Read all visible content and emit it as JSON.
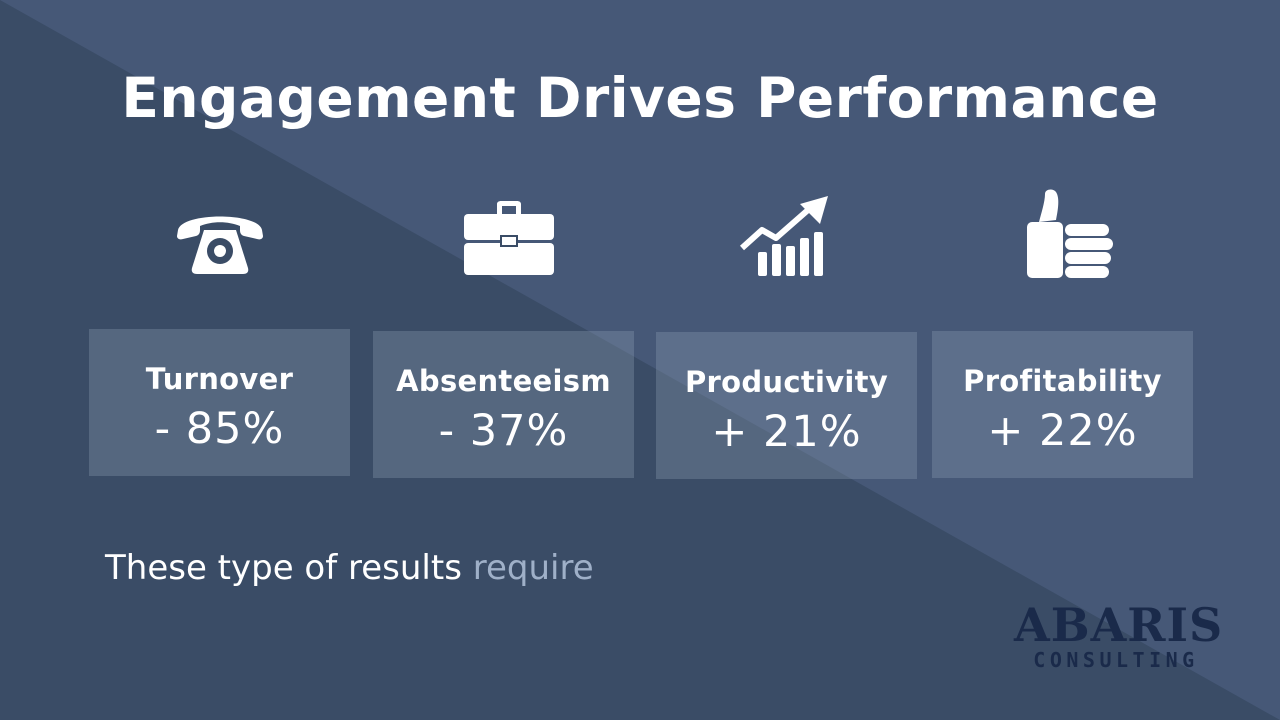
{
  "slide": {
    "title": "Engagement Drives Performance",
    "caption_main": "These type of results",
    "caption_fade": "require"
  },
  "metrics": [
    {
      "label": "Turnover",
      "value": "- 85%",
      "icon": "telephone-icon"
    },
    {
      "label": "Absenteeism",
      "value": "- 37%",
      "icon": "briefcase-icon"
    },
    {
      "label": "Productivity",
      "value": "+ 21%",
      "icon": "growth-chart-icon"
    },
    {
      "label": "Profitability",
      "value": "+ 22%",
      "icon": "thumbs-up-icon"
    }
  ],
  "logo": {
    "name": "ABARIS",
    "sub": "CONSULTING"
  },
  "colors": {
    "background_light": "#465877",
    "background_dark": "#3a4c66",
    "card": "rgba(150,165,185,0.30)",
    "text": "#ffffff",
    "caption_fade": "#9fb0c8",
    "logo": "#1a2a4a"
  }
}
